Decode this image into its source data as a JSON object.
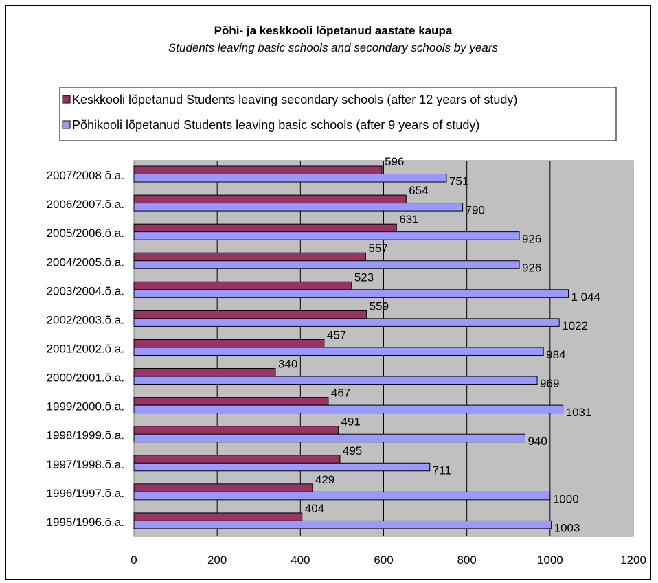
{
  "chart_data": {
    "type": "bar",
    "orientation": "horizontal",
    "title": "Põhi- ja keskkooli lõpetanud aastate kaupa",
    "subtitle": "Students leaving basic schools and secondary schools by years",
    "categories": [
      "2007/2008 õ.a.",
      "2006/2007.õ.a.",
      "2005/2006.õ.a.",
      "2004/2005.õ.a.",
      "2003/2004.õ.a.",
      "2002/2003.õ.a.",
      "2001/2002.õ.a.",
      "2000/2001.õ.a.",
      "1999/2000.õ.a.",
      "1998/1999.õ.a.",
      "1997/1998.õ.a.",
      "1996/1997.õ.a.",
      "1995/1996.õ.a."
    ],
    "series": [
      {
        "name": "Keskkooli lõpetanud Students leaving secondary schools (after 12 years of study)",
        "color": "#993366",
        "values": [
          596,
          654,
          631,
          557,
          523,
          559,
          457,
          340,
          467,
          491,
          495,
          429,
          404
        ],
        "labels": [
          "596",
          "654",
          "631",
          "557",
          "523",
          "559",
          "457",
          "340",
          "467",
          "491",
          "495",
          "429",
          "404"
        ]
      },
      {
        "name": "Põhikooli lõpetanud Students leaving  basic schools (after 9 years of study)",
        "color": "#9999FF",
        "values": [
          751,
          790,
          926,
          926,
          1044,
          1022,
          984,
          969,
          1031,
          940,
          711,
          1000,
          1003
        ],
        "labels": [
          "751",
          "790",
          "926",
          "926",
          "1 044",
          "1022",
          "984",
          "969",
          "1031",
          "940",
          "711",
          "1000",
          "1003"
        ]
      }
    ],
    "xlim": [
      0,
      1200
    ],
    "xticks": [
      "0",
      "200",
      "400",
      "600",
      "800",
      "1000",
      "1200"
    ],
    "xtick_values": [
      0,
      200,
      400,
      600,
      800,
      1000,
      1200
    ],
    "grid": true,
    "plot_background": "#C0C0C0",
    "legend_position": "top"
  }
}
